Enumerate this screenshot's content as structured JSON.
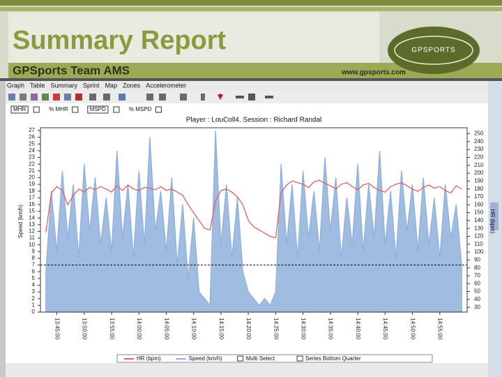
{
  "header": {
    "title": "Summary Report",
    "subtitle": "GPSports Team AMS",
    "url": "www.gpsports.com",
    "logo": "GPSPORTS"
  },
  "tabs": [
    "Graph",
    "Table",
    "Summary",
    "Sprint",
    "Map",
    "Zones",
    "Accelerometer"
  ],
  "checkboxes": [
    "MHR",
    "% MHR",
    "MSPD",
    "% MSPD"
  ],
  "legend_extras": [
    "Multi Select",
    "Series Bottom Quarter"
  ],
  "chart_data": {
    "type": "line",
    "title": "Player : LouColl4. Session : Richard Randal",
    "x_time_format": "HH:MM:SS",
    "y_label": "Speed (km/h)",
    "y2_label": "HR (bpm)",
    "xlim": [
      "13:42:00",
      "15:00:00"
    ],
    "xticks": [
      "13:45:00",
      "13:50:00",
      "13:55:00",
      "14:00:00",
      "14:05:00",
      "14:10:00",
      "14:15:00",
      "14:20:00",
      "14:25:00",
      "14:30:00",
      "14:35:00",
      "14:40:00",
      "14:45:00",
      "14:50:00",
      "14:55:00"
    ],
    "ylim": [
      0,
      27
    ],
    "yticks": [
      0,
      1,
      2,
      3,
      4,
      5,
      6,
      7,
      8,
      9,
      10,
      11,
      12,
      13,
      14,
      15,
      16,
      17,
      18,
      19,
      20,
      21,
      22,
      23,
      24,
      25,
      26,
      27
    ],
    "y2lim": [
      24,
      254
    ],
    "y2ticks": [
      30,
      40,
      50,
      60,
      70,
      80,
      90,
      100,
      110,
      120,
      130,
      140,
      150,
      160,
      170,
      180,
      190,
      200,
      210,
      220,
      230,
      240,
      250
    ],
    "threshold": 7,
    "x": [
      "13:43:00",
      "13:44:00",
      "13:45:00",
      "13:46:00",
      "13:47:00",
      "13:48:00",
      "13:49:00",
      "13:50:00",
      "13:51:00",
      "13:52:00",
      "13:53:00",
      "13:54:00",
      "13:55:00",
      "13:56:00",
      "13:57:00",
      "13:58:00",
      "13:59:00",
      "14:00:00",
      "14:01:00",
      "14:02:00",
      "14:03:00",
      "14:04:00",
      "14:05:00",
      "14:06:00",
      "14:07:00",
      "14:08:00",
      "14:09:00",
      "14:10:00",
      "14:11:00",
      "14:12:00",
      "14:13:00",
      "14:14:00",
      "14:15:00",
      "14:16:00",
      "14:17:00",
      "14:18:00",
      "14:19:00",
      "14:20:00",
      "14:21:00",
      "14:22:00",
      "14:23:00",
      "14:24:00",
      "14:25:00",
      "14:26:00",
      "14:27:00",
      "14:28:00",
      "14:29:00",
      "14:30:00",
      "14:31:00",
      "14:32:00",
      "14:33:00",
      "14:34:00",
      "14:35:00",
      "14:36:00",
      "14:37:00",
      "14:38:00",
      "14:39:00",
      "14:40:00",
      "14:41:00",
      "14:42:00",
      "14:43:00",
      "14:44:00",
      "14:45:00",
      "14:46:00",
      "14:47:00",
      "14:48:00",
      "14:49:00",
      "14:50:00",
      "14:51:00",
      "14:52:00",
      "14:53:00",
      "14:54:00",
      "14:55:00",
      "14:56:00",
      "14:57:00",
      "14:58:00",
      "14:59:00"
    ],
    "series": [
      {
        "name": "Speed (km/h)",
        "color": "#8fb0dc",
        "axis": "y",
        "fill": true,
        "values": [
          6,
          18,
          9,
          21,
          11,
          19,
          8,
          22,
          12,
          20,
          10,
          17,
          9,
          24,
          11,
          19,
          8,
          21,
          10,
          26,
          12,
          18,
          9,
          20,
          7,
          16,
          5,
          14,
          3,
          2,
          1,
          27,
          10,
          19,
          8,
          17,
          6,
          3,
          2,
          1,
          2,
          1,
          3,
          22,
          10,
          19,
          8,
          21,
          11,
          18,
          9,
          23,
          12,
          20,
          8,
          17,
          10,
          22,
          9,
          19,
          11,
          24,
          10,
          18,
          8,
          21,
          12,
          19,
          9,
          20,
          10,
          17,
          8,
          19,
          11,
          16,
          7
        ]
      },
      {
        "name": "HR (bpm)",
        "color": "#e06060",
        "axis": "y2",
        "fill": false,
        "values": [
          125,
          175,
          183,
          178,
          160,
          172,
          180,
          176,
          182,
          179,
          183,
          180,
          176,
          184,
          178,
          185,
          180,
          178,
          182,
          181,
          179,
          183,
          178,
          180,
          176,
          172,
          160,
          150,
          140,
          130,
          128,
          165,
          178,
          180,
          176,
          170,
          160,
          140,
          132,
          128,
          124,
          120,
          118,
          175,
          185,
          190,
          188,
          186,
          182,
          189,
          191,
          187,
          184,
          180,
          186,
          188,
          183,
          179,
          185,
          187,
          182,
          178,
          176,
          183,
          186,
          188,
          184,
          180,
          177,
          182,
          185,
          181,
          183,
          178,
          175,
          184,
          180
        ]
      }
    ]
  }
}
